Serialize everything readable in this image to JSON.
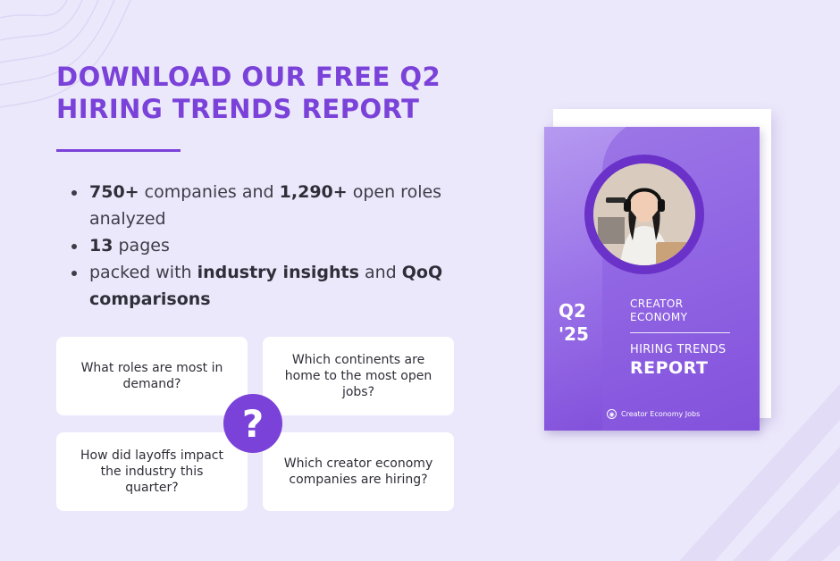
{
  "headline": "DOWNLOAD OUR FREE Q2 HIRING TRENDS REPORT",
  "bullets": {
    "b1_strong1": "750+",
    "b1_text1": " companies and ",
    "b1_strong2": "1,290+",
    "b1_text2": " open roles analyzed",
    "b2_strong": "13",
    "b2_text": " pages",
    "b3_text1": "packed with ",
    "b3_strong1": "industry insights",
    "b3_text2": " and ",
    "b3_strong2": "QoQ comparisons"
  },
  "questions": [
    "What roles are most in demand?",
    "Which continents are home to the most open jobs?",
    "How did layoffs impact the industry this quarter?",
    "Which creator economy companies are hiring?"
  ],
  "question_mark": "?",
  "cover": {
    "quarter_line1": "Q2",
    "quarter_line2": "'25",
    "label_line1": "CREATOR",
    "label_line2": "ECONOMY",
    "subtitle": "HIRING TRENDS",
    "title": "REPORT",
    "brand": "Creator Economy Jobs"
  },
  "colors": {
    "accent": "#7a42d9",
    "background": "#ece8fb"
  }
}
